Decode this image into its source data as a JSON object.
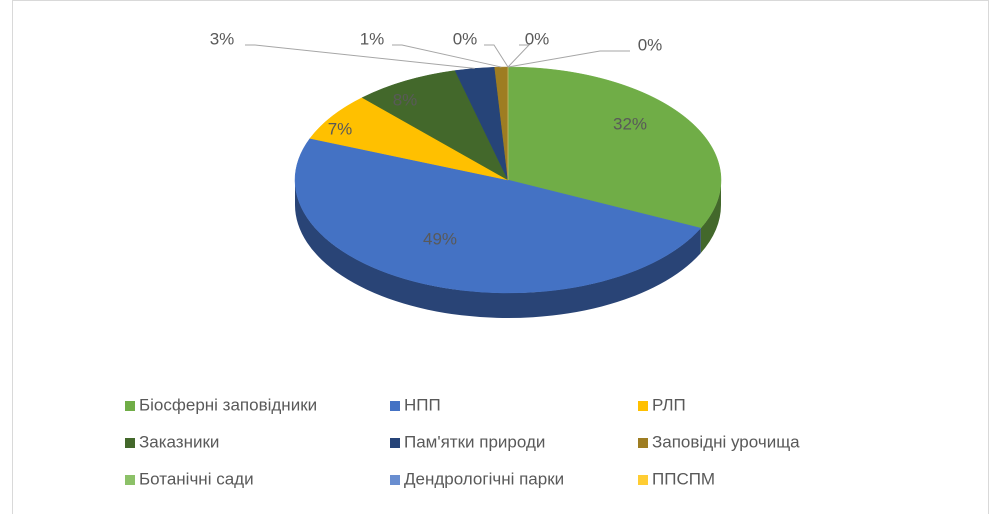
{
  "chart_data": {
    "type": "pie",
    "categories": [
      "Біосферні заповідники",
      "НПП",
      "РЛП",
      "Заказники",
      "Пам'ятки природи",
      "Заповідні урочища",
      "Ботанічні сади",
      "Дендрологічні парки",
      "ППСПМ"
    ],
    "values": [
      32,
      49,
      7,
      8,
      3,
      1,
      0,
      0,
      0
    ],
    "value_labels": [
      "32%",
      "49%",
      "7%",
      "8%",
      "3%",
      "1%",
      "0%",
      "0%",
      "0%"
    ],
    "colors": [
      "#70ad47",
      "#4472c4",
      "#ffc000",
      "#43682b",
      "#264478",
      "#9e7d22",
      "#8cc168",
      "#698ed0",
      "#ffcd33"
    ],
    "legend": "bottom"
  }
}
